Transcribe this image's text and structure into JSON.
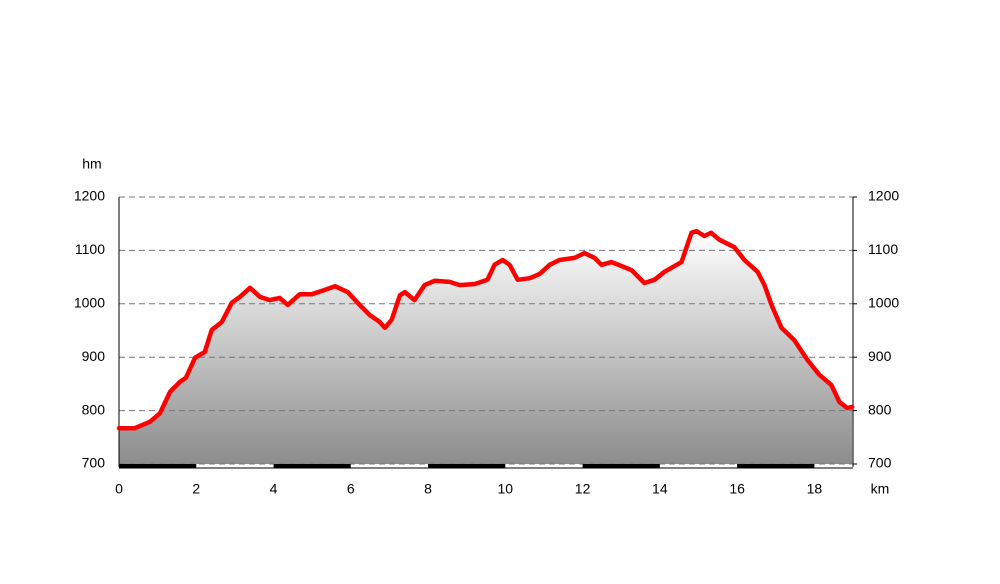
{
  "chart_data": {
    "type": "area",
    "y_label": "hm",
    "x_label": "km",
    "x": [
      0,
      0.41,
      0.8,
      1.06,
      1.32,
      1.58,
      1.73,
      1.97,
      2.22,
      2.4,
      2.66,
      2.92,
      3.13,
      3.39,
      3.65,
      3.9,
      4.16,
      4.37,
      4.68,
      4.99,
      5.33,
      5.59,
      5.92,
      6.23,
      6.49,
      6.75,
      6.88,
      7.06,
      7.27,
      7.4,
      7.65,
      7.91,
      8.17,
      8.56,
      8.82,
      9.21,
      9.54,
      9.72,
      9.93,
      10.11,
      10.32,
      10.63,
      10.89,
      11.15,
      11.4,
      11.79,
      12.05,
      12.31,
      12.49,
      12.75,
      13.0,
      13.27,
      13.6,
      13.86,
      14.12,
      14.56,
      14.82,
      14.95,
      15.15,
      15.33,
      15.54,
      15.93,
      16.19,
      16.53,
      16.71,
      16.89,
      17.15,
      17.48,
      17.82,
      18.13,
      18.44,
      18.65,
      18.85,
      18.98
    ],
    "values": [
      767,
      767,
      779,
      795,
      835,
      854,
      861,
      899,
      910,
      951,
      966,
      1002,
      1013,
      1030,
      1013,
      1007,
      1011,
      998,
      1018,
      1018,
      1026,
      1033,
      1022,
      998,
      979,
      966,
      955,
      970,
      1016,
      1022,
      1007,
      1035,
      1043,
      1041,
      1035,
      1037,
      1045,
      1073,
      1082,
      1073,
      1045,
      1048,
      1056,
      1073,
      1082,
      1086,
      1095,
      1086,
      1073,
      1078,
      1071,
      1063,
      1039,
      1045,
      1060,
      1078,
      1133,
      1136,
      1127,
      1133,
      1120,
      1106,
      1082,
      1060,
      1035,
      998,
      955,
      932,
      895,
      867,
      848,
      816,
      805,
      807
    ],
    "color": "#ff0000",
    "xlim": [
      0,
      19
    ],
    "xticks": [
      0,
      2,
      4,
      6,
      8,
      10,
      12,
      14,
      16,
      18
    ],
    "ylim": [
      700,
      1200
    ],
    "yticks": [
      700,
      800,
      900,
      1000,
      1100,
      1200
    ],
    "y2lim": [
      700,
      1200
    ],
    "y2ticks": [
      700,
      800,
      900,
      1000,
      1100,
      1200
    ],
    "grid": true
  }
}
